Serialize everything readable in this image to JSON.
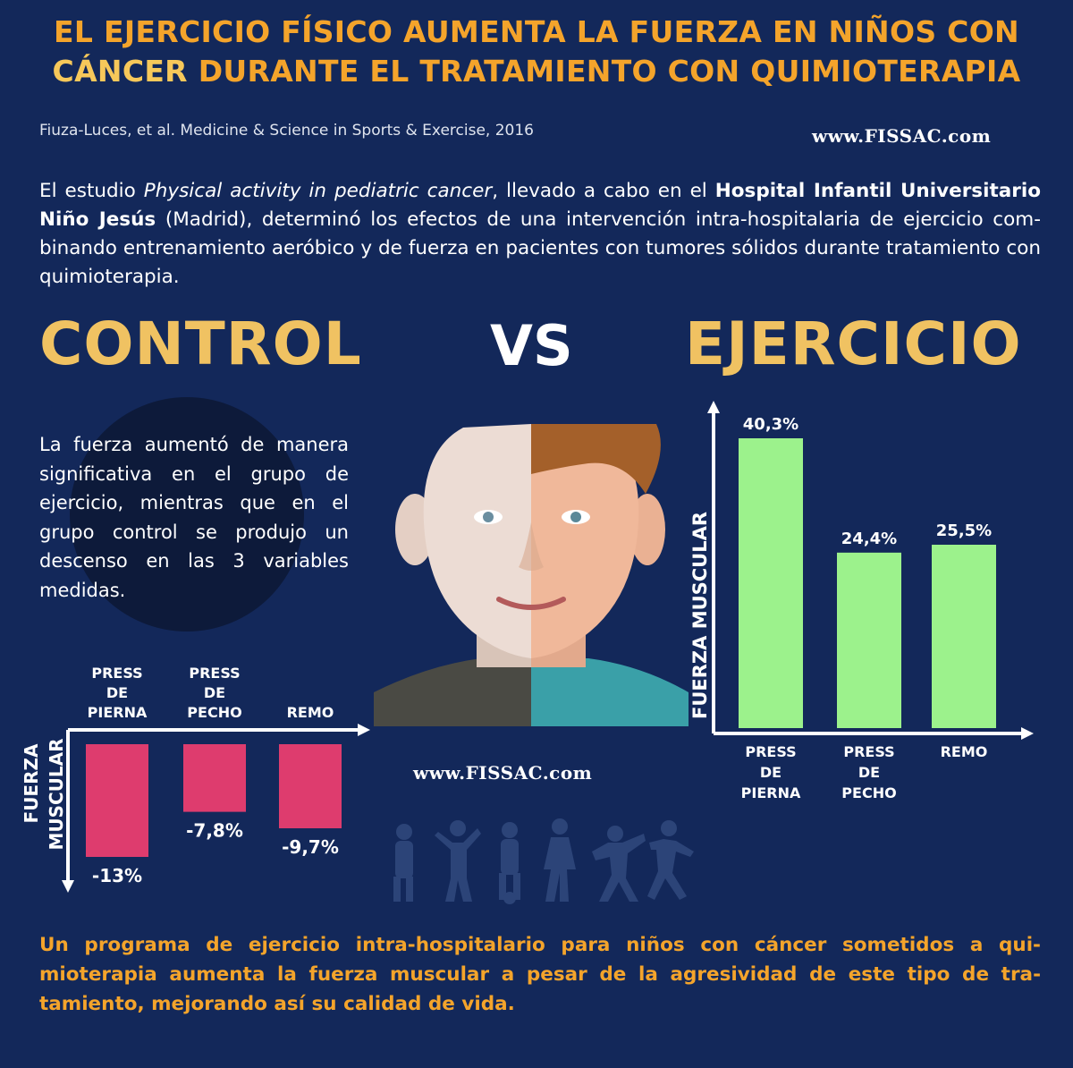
{
  "title": {
    "line1": "EL EJERCICIO FÍSICO AUMENTA LA FUERZA EN NIÑOS CON",
    "line2_highlight": "CÁNCER",
    "line2_rest": " DURANTE EL TRATAMIENTO CON QUIMIOTERAPIA"
  },
  "citation": "Fiuza-Luces, et al. Medicine & Science in Sports & Exercise, 2016",
  "site_url": "www.FISSAC.com",
  "intro": {
    "part1": "El estudio ",
    "study_name": "Physical activity in pediatric cancer",
    "part2": ", llevado a cabo en el ",
    "hospital": "Hospital Infantil Universitario Niño Jesús",
    "part3": " (Madrid), determinó los efectos de una intervención intra-hospitalaria de ejercicio com-binando entrenamiento aeróbico y de fuerza en pacientes con tumores sólidos durante tratamiento con quimioterapia."
  },
  "headings": {
    "control": "CONTROL",
    "vs": "VS",
    "ejercicio": "EJERCICIO"
  },
  "side_text": "La fuerza aumentó de manera significativa en el grupo de ejercicio, mientras que en el grupo control se produjo un descenso en las 3 variables medidas.",
  "conclusion": "Un programa de ejercicio intra-hospitalario para niños con cáncer sometidos a qui-mioterapia aumenta la fuerza muscular a pesar de la agresividad de este tipo de tra-tamiento, mejorando así su calidad de vida.",
  "colors": {
    "background": "#13285a",
    "control_bar": "#de3c6e",
    "exercise_bar": "#9cf28c",
    "accent": "#f4a42b"
  },
  "chart_data": [
    {
      "type": "bar",
      "group": "CONTROL",
      "ylabel_line1": "FUERZA",
      "ylabel_line2": "MUSCULAR",
      "categories": [
        [
          "PRESS",
          "DE",
          "PIERNA"
        ],
        [
          "PRESS",
          "DE",
          "PECHO"
        ],
        [
          "REMO"
        ]
      ],
      "values": [
        -13,
        -7.8,
        -9.7
      ],
      "value_labels": [
        "-13%",
        "-7,8%",
        "-9,7%"
      ],
      "ylim": [
        -13,
        0
      ]
    },
    {
      "type": "bar",
      "group": "EJERCICIO",
      "ylabel": "FUERZA MUSCULAR",
      "categories": [
        [
          "PRESS",
          "DE",
          "PIERNA"
        ],
        [
          "PRESS",
          "DE",
          "PECHO"
        ],
        [
          "REMO"
        ]
      ],
      "values": [
        40.3,
        24.4,
        25.5
      ],
      "value_labels": [
        "40,3%",
        "24,4%",
        "25,5%"
      ],
      "ylim": [
        0,
        40.3
      ]
    }
  ]
}
